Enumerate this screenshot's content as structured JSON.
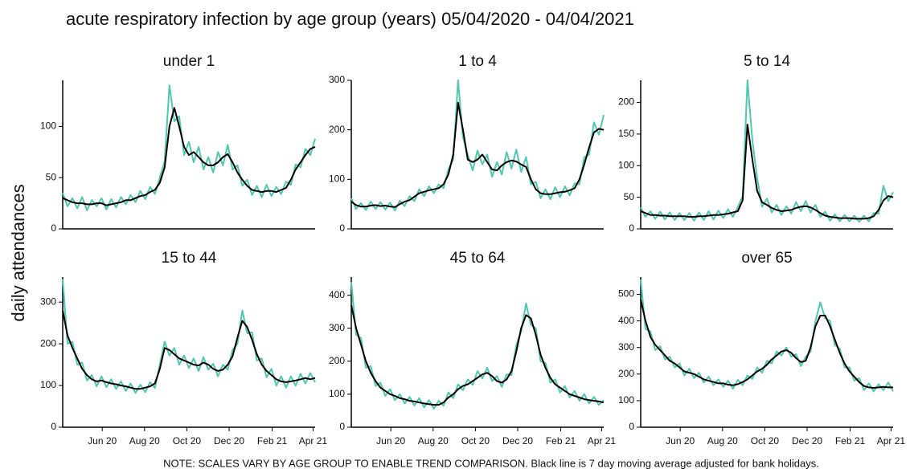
{
  "title": "acute respiratory infection by age group (years) 05/04/2020 - 04/04/2021",
  "y_label": "daily attendances",
  "note": "NOTE: SCALES VARY BY AGE GROUP TO ENABLE TREND COMPARISON. Black line is 7 day moving average adjusted for bank holidays.",
  "chart_data": [
    {
      "type": "line",
      "title": "under 1",
      "x": [
        0,
        7,
        14,
        21,
        28,
        35,
        42,
        49,
        56,
        63,
        70,
        77,
        84,
        91,
        98,
        105,
        112,
        119,
        126,
        133,
        140,
        147,
        154,
        161,
        168,
        175,
        182,
        189,
        196,
        203,
        210,
        217,
        224,
        231,
        238,
        245,
        252,
        259,
        266,
        273,
        280,
        287,
        294,
        301,
        308,
        315,
        322,
        329,
        336,
        343,
        350,
        357,
        364
      ],
      "xlim": [
        0,
        364
      ],
      "ylim": [
        0,
        145
      ],
      "yticks": [
        0,
        50,
        100
      ],
      "series": [
        {
          "color": "#4fc9b0",
          "values": [
            35,
            22,
            30,
            20,
            31,
            18,
            28,
            22,
            30,
            19,
            29,
            21,
            31,
            24,
            33,
            26,
            37,
            29,
            41,
            34,
            50,
            66,
            140,
            105,
            110,
            72,
            85,
            65,
            80,
            58,
            70,
            55,
            75,
            62,
            82,
            58,
            62,
            42,
            48,
            33,
            42,
            31,
            43,
            32,
            41,
            34,
            46,
            43,
            63,
            60,
            78,
            72,
            88
          ]
        },
        {
          "color": "#000000",
          "values": [
            30,
            28,
            26,
            25,
            25,
            24,
            24,
            25,
            25,
            23,
            24,
            25,
            26,
            28,
            28,
            30,
            32,
            33,
            36,
            38,
            45,
            60,
            100,
            118,
            100,
            80,
            72,
            75,
            70,
            65,
            62,
            62,
            65,
            70,
            73,
            65,
            55,
            48,
            42,
            38,
            37,
            36,
            37,
            37,
            36,
            38,
            40,
            48,
            58,
            65,
            72,
            78,
            80
          ]
        }
      ]
    },
    {
      "type": "line",
      "title": "1 to 4",
      "x": [
        0,
        7,
        14,
        21,
        28,
        35,
        42,
        49,
        56,
        63,
        70,
        77,
        84,
        91,
        98,
        105,
        112,
        119,
        126,
        133,
        140,
        147,
        154,
        161,
        168,
        175,
        182,
        189,
        196,
        203,
        210,
        217,
        224,
        231,
        238,
        245,
        252,
        259,
        266,
        273,
        280,
        287,
        294,
        301,
        308,
        315,
        322,
        329,
        336,
        343,
        350,
        357,
        364
      ],
      "xlim": [
        0,
        364
      ],
      "ylim": [
        0,
        300
      ],
      "yticks": [
        0,
        100,
        200,
        300
      ],
      "series": [
        {
          "color": "#4fc9b0",
          "values": [
            62,
            40,
            52,
            38,
            55,
            40,
            54,
            39,
            53,
            37,
            57,
            46,
            66,
            56,
            80,
            66,
            86,
            72,
            90,
            82,
            120,
            140,
            300,
            185,
            150,
            118,
            158,
            130,
            150,
            105,
            135,
            110,
            155,
            122,
            160,
            115,
            145,
            90,
            95,
            62,
            80,
            60,
            84,
            64,
            86,
            68,
            92,
            90,
            145,
            150,
            215,
            190,
            230
          ]
        },
        {
          "color": "#000000",
          "values": [
            55,
            48,
            45,
            45,
            47,
            48,
            46,
            47,
            45,
            44,
            50,
            55,
            58,
            65,
            72,
            75,
            78,
            80,
            82,
            90,
            110,
            150,
            255,
            200,
            140,
            135,
            140,
            150,
            135,
            120,
            118,
            128,
            135,
            138,
            136,
            130,
            125,
            100,
            80,
            72,
            70,
            70,
            72,
            74,
            75,
            78,
            82,
            100,
            130,
            165,
            195,
            202,
            200
          ]
        }
      ]
    },
    {
      "type": "line",
      "title": "5 to 14",
      "x": [
        0,
        7,
        14,
        21,
        28,
        35,
        42,
        49,
        56,
        63,
        70,
        77,
        84,
        91,
        98,
        105,
        112,
        119,
        126,
        133,
        140,
        147,
        154,
        161,
        168,
        175,
        182,
        189,
        196,
        203,
        210,
        217,
        224,
        231,
        238,
        245,
        252,
        259,
        266,
        273,
        280,
        287,
        294,
        301,
        308,
        315,
        322,
        329,
        336,
        343,
        350,
        357,
        364
      ],
      "xlim": [
        0,
        364
      ],
      "ylim": [
        0,
        235
      ],
      "yticks": [
        0,
        50,
        100,
        150,
        200
      ],
      "series": [
        {
          "color": "#4fc9b0",
          "values": [
            34,
            19,
            28,
            16,
            27,
            15,
            26,
            14,
            25,
            14,
            25,
            13,
            26,
            14,
            28,
            15,
            29,
            17,
            31,
            19,
            34,
            52,
            235,
            140,
            80,
            35,
            48,
            26,
            38,
            22,
            36,
            24,
            42,
            28,
            44,
            26,
            38,
            19,
            27,
            13,
            23,
            12,
            22,
            12,
            21,
            11,
            21,
            12,
            25,
            24,
            68,
            44,
            58
          ]
        },
        {
          "color": "#000000",
          "values": [
            28,
            25,
            22,
            22,
            21,
            21,
            20,
            20,
            20,
            20,
            19,
            19,
            20,
            20,
            21,
            22,
            22,
            23,
            24,
            26,
            28,
            45,
            165,
            110,
            60,
            42,
            38,
            33,
            30,
            28,
            29,
            30,
            33,
            35,
            36,
            34,
            30,
            25,
            21,
            19,
            18,
            17,
            17,
            17,
            16,
            16,
            16,
            17,
            20,
            30,
            45,
            52,
            50
          ]
        }
      ]
    },
    {
      "type": "line",
      "title": "15 to 44",
      "x": [
        0,
        7,
        14,
        21,
        28,
        35,
        42,
        49,
        56,
        63,
        70,
        77,
        84,
        91,
        98,
        105,
        112,
        119,
        126,
        133,
        140,
        147,
        154,
        161,
        168,
        175,
        182,
        189,
        196,
        203,
        210,
        217,
        224,
        231,
        238,
        245,
        252,
        259,
        266,
        273,
        280,
        287,
        294,
        301,
        308,
        315,
        322,
        329,
        336,
        343,
        350,
        357,
        364
      ],
      "xlim": [
        0,
        364
      ],
      "ylim": [
        0,
        360
      ],
      "yticks": [
        0,
        100,
        200,
        300
      ],
      "xticks": [
        {
          "value": 57,
          "label": "Jun 20"
        },
        {
          "value": 118,
          "label": "Aug 20"
        },
        {
          "value": 179,
          "label": "Oct 20"
        },
        {
          "value": 240,
          "label": "Dec 20"
        },
        {
          "value": 302,
          "label": "Feb 21"
        },
        {
          "value": 361,
          "label": "Apr 21"
        }
      ],
      "series": [
        {
          "color": "#4fc9b0",
          "values": [
            355,
            200,
            205,
            150,
            155,
            112,
            125,
            98,
            122,
            96,
            115,
            92,
            110,
            87,
            105,
            82,
            102,
            84,
            108,
            94,
            150,
            205,
            172,
            190,
            150,
            172,
            142,
            165,
            135,
            168,
            138,
            152,
            122,
            150,
            138,
            185,
            200,
            280,
            225,
            228,
            160,
            165,
            120,
            140,
            100,
            122,
            95,
            122,
            100,
            128,
            105,
            130,
            108
          ]
        },
        {
          "color": "#000000",
          "values": [
            280,
            220,
            190,
            165,
            140,
            125,
            115,
            110,
            112,
            108,
            105,
            103,
            100,
            98,
            95,
            92,
            92,
            95,
            98,
            105,
            140,
            190,
            185,
            175,
            165,
            160,
            155,
            150,
            148,
            155,
            150,
            140,
            135,
            138,
            150,
            170,
            215,
            255,
            240,
            210,
            175,
            150,
            135,
            125,
            115,
            110,
            108,
            110,
            112,
            115,
            118,
            115,
            118
          ]
        }
      ]
    },
    {
      "type": "line",
      "title": "45 to 64",
      "x": [
        0,
        7,
        14,
        21,
        28,
        35,
        42,
        49,
        56,
        63,
        70,
        77,
        84,
        91,
        98,
        105,
        112,
        119,
        126,
        133,
        140,
        147,
        154,
        161,
        168,
        175,
        182,
        189,
        196,
        203,
        210,
        217,
        224,
        231,
        238,
        245,
        252,
        259,
        266,
        273,
        280,
        287,
        294,
        301,
        308,
        315,
        322,
        329,
        336,
        343,
        350,
        357,
        364
      ],
      "xlim": [
        0,
        364
      ],
      "ylim": [
        0,
        455
      ],
      "yticks": [
        0,
        100,
        200,
        300,
        400
      ],
      "xticks": [
        {
          "value": 57,
          "label": "Jun 20"
        },
        {
          "value": 118,
          "label": "Aug 20"
        },
        {
          "value": 179,
          "label": "Oct 20"
        },
        {
          "value": 240,
          "label": "Dec 20"
        },
        {
          "value": 302,
          "label": "Feb 21"
        },
        {
          "value": 361,
          "label": "Apr 21"
        }
      ],
      "series": [
        {
          "color": "#4fc9b0",
          "values": [
            440,
            280,
            270,
            180,
            185,
            125,
            135,
            95,
            115,
            82,
            100,
            72,
            92,
            66,
            88,
            60,
            82,
            56,
            80,
            65,
            105,
            88,
            130,
            112,
            145,
            128,
            170,
            148,
            180,
            140,
            155,
            122,
            160,
            158,
            250,
            290,
            375,
            310,
            300,
            200,
            195,
            135,
            145,
            105,
            125,
            90,
            110,
            80,
            100,
            72,
            92,
            68,
            82
          ]
        },
        {
          "color": "#000000",
          "values": [
            370,
            300,
            250,
            200,
            165,
            140,
            120,
            110,
            100,
            95,
            88,
            85,
            80,
            78,
            75,
            72,
            70,
            68,
            68,
            75,
            90,
            100,
            115,
            125,
            130,
            140,
            150,
            160,
            165,
            155,
            140,
            135,
            145,
            170,
            230,
            300,
            340,
            330,
            280,
            220,
            180,
            150,
            130,
            120,
            110,
            100,
            95,
            90,
            85,
            82,
            80,
            78,
            75
          ]
        }
      ]
    },
    {
      "type": "line",
      "title": "over 65",
      "x": [
        0,
        7,
        14,
        21,
        28,
        35,
        42,
        49,
        56,
        63,
        70,
        77,
        84,
        91,
        98,
        105,
        112,
        119,
        126,
        133,
        140,
        147,
        154,
        161,
        168,
        175,
        182,
        189,
        196,
        203,
        210,
        217,
        224,
        231,
        238,
        245,
        252,
        259,
        266,
        273,
        280,
        287,
        294,
        301,
        308,
        315,
        322,
        329,
        336,
        343,
        350,
        357,
        364
      ],
      "xlim": [
        0,
        364
      ],
      "ylim": [
        0,
        565
      ],
      "yticks": [
        0,
        100,
        200,
        300,
        400,
        500
      ],
      "xticks": [
        {
          "value": 57,
          "label": "Jun 20"
        },
        {
          "value": 118,
          "label": "Aug 20"
        },
        {
          "value": 179,
          "label": "Oct 20"
        },
        {
          "value": 240,
          "label": "Dec 20"
        },
        {
          "value": 302,
          "label": "Feb 21"
        },
        {
          "value": 361,
          "label": "Apr 21"
        }
      ],
      "series": [
        {
          "color": "#4fc9b0",
          "values": [
            555,
            370,
            360,
            290,
            305,
            255,
            265,
            225,
            240,
            195,
            220,
            185,
            205,
            168,
            190,
            158,
            180,
            152,
            175,
            145,
            178,
            158,
            195,
            182,
            225,
            205,
            250,
            240,
            285,
            270,
            300,
            265,
            275,
            230,
            265,
            285,
            400,
            470,
            410,
            400,
            310,
            295,
            225,
            225,
            175,
            185,
            140,
            165,
            135,
            162,
            140,
            168,
            135
          ]
        },
        {
          "color": "#000000",
          "values": [
            480,
            400,
            340,
            310,
            290,
            270,
            250,
            240,
            225,
            210,
            205,
            200,
            190,
            180,
            175,
            170,
            165,
            165,
            160,
            158,
            162,
            170,
            180,
            195,
            210,
            220,
            235,
            255,
            270,
            285,
            290,
            280,
            260,
            245,
            250,
            300,
            380,
            420,
            420,
            380,
            330,
            280,
            240,
            210,
            190,
            170,
            155,
            150,
            148,
            150,
            152,
            150,
            150
          ]
        }
      ]
    }
  ]
}
